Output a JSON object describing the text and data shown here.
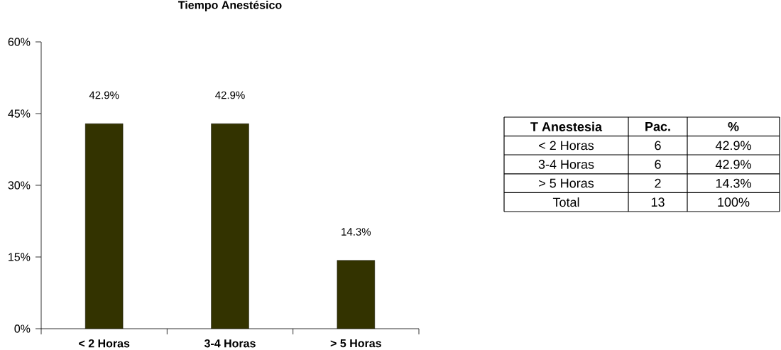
{
  "chart_data": [
    {
      "type": "bar",
      "title": "Tiempo Anestésico",
      "categories": [
        "< 2 Horas",
        "3-4 Horas",
        "> 5 Horas"
      ],
      "values": [
        42.9,
        42.9,
        14.3
      ],
      "value_labels": [
        "42.9%",
        "42.9%",
        "14.3%"
      ],
      "color": "#333300",
      "ylim": [
        0,
        60
      ],
      "yticks": [
        {
          "value": 0,
          "label": "0%"
        },
        {
          "value": 15,
          "label": "15%"
        },
        {
          "value": 30,
          "label": "30%"
        },
        {
          "value": 45,
          "label": "45%"
        },
        {
          "value": 60,
          "label": "60%"
        }
      ]
    },
    {
      "type": "other",
      "annotations": [
        "T Anestesia",
        "Pac.",
        "%",
        "< 2 Horas",
        "6",
        "42.9%",
        "3-4 Horas",
        "6",
        "42.9%",
        "> 5 Horas",
        "2",
        "14.3%",
        "Total",
        "13",
        "100%"
      ]
    }
  ]
}
